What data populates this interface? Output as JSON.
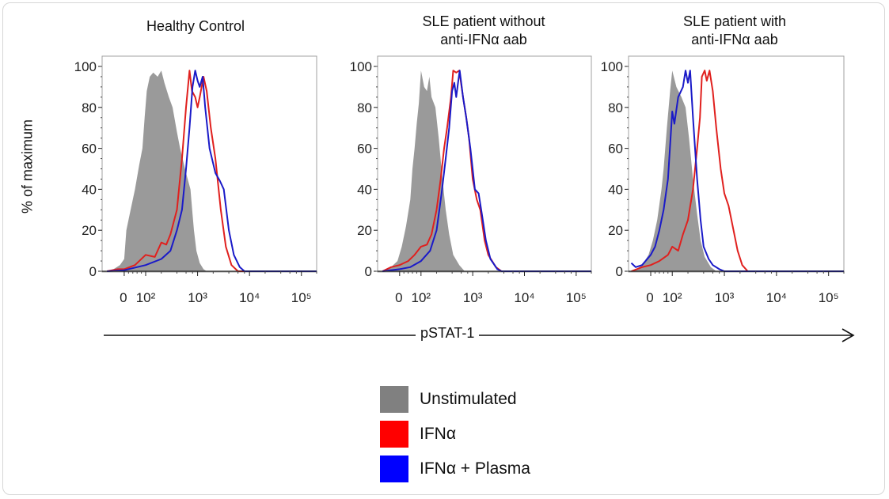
{
  "chart_data": [
    {
      "type": "area",
      "title": "Healthy Control",
      "ylim": [
        0,
        105
      ],
      "xscale": "biexponential",
      "xlim": [
        -100,
        250000
      ],
      "x_ticks": [
        "0",
        "10²",
        "10³",
        "10⁴",
        "10⁵"
      ],
      "x_tick_values": [
        0,
        100,
        1000,
        10000,
        100000
      ],
      "y_ticks": [
        0,
        20,
        40,
        60,
        80,
        100
      ],
      "series": [
        {
          "name": "Unstimulated",
          "style": "filled",
          "color": "#9a9a9a",
          "points": [
            [
              -80,
              0
            ],
            [
              -50,
              1
            ],
            [
              -20,
              3
            ],
            [
              0,
              6
            ],
            [
              10,
              20
            ],
            [
              30,
              30
            ],
            [
              50,
              40
            ],
            [
              70,
              52
            ],
            [
              85,
              60
            ],
            [
              95,
              75
            ],
            [
              105,
              88
            ],
            [
              120,
              95
            ],
            [
              140,
              97
            ],
            [
              170,
              95
            ],
            [
              200,
              98
            ],
            [
              230,
              92
            ],
            [
              280,
              85
            ],
            [
              330,
              80
            ],
            [
              400,
              68
            ],
            [
              460,
              60
            ],
            [
              600,
              48
            ],
            [
              730,
              40
            ],
            [
              800,
              28
            ],
            [
              850,
              20
            ],
            [
              950,
              10
            ],
            [
              1100,
              4
            ],
            [
              1300,
              1
            ],
            [
              1500,
              0
            ],
            [
              250000,
              0
            ]
          ]
        },
        {
          "name": "IFNα",
          "style": "line",
          "color": "#e0201e",
          "points": [
            [
              -80,
              0
            ],
            [
              -30,
              1
            ],
            [
              0,
              1
            ],
            [
              50,
              3
            ],
            [
              100,
              8
            ],
            [
              150,
              7
            ],
            [
              200,
              14
            ],
            [
              250,
              13
            ],
            [
              300,
              18
            ],
            [
              400,
              30
            ],
            [
              500,
              55
            ],
            [
              600,
              80
            ],
            [
              700,
              98
            ],
            [
              780,
              88
            ],
            [
              900,
              85
            ],
            [
              1000,
              80
            ],
            [
              1100,
              85
            ],
            [
              1300,
              95
            ],
            [
              1500,
              88
            ],
            [
              1800,
              70
            ],
            [
              2200,
              55
            ],
            [
              2800,
              30
            ],
            [
              3500,
              12
            ],
            [
              4500,
              3
            ],
            [
              6000,
              0
            ],
            [
              250000,
              0
            ]
          ]
        },
        {
          "name": "IFNα + Plasma",
          "style": "line",
          "color": "#1a1ac8",
          "points": [
            [
              -80,
              0
            ],
            [
              0,
              0.5
            ],
            [
              100,
              3
            ],
            [
              200,
              6
            ],
            [
              300,
              10
            ],
            [
              400,
              20
            ],
            [
              500,
              30
            ],
            [
              600,
              50
            ],
            [
              700,
              70
            ],
            [
              800,
              90
            ],
            [
              900,
              98
            ],
            [
              1000,
              93
            ],
            [
              1100,
              90
            ],
            [
              1250,
              95
            ],
            [
              1400,
              80
            ],
            [
              1700,
              60
            ],
            [
              2200,
              48
            ],
            [
              2700,
              44
            ],
            [
              3200,
              40
            ],
            [
              4000,
              20
            ],
            [
              5000,
              8
            ],
            [
              6500,
              2
            ],
            [
              8000,
              0
            ],
            [
              250000,
              0
            ]
          ]
        }
      ]
    },
    {
      "type": "area",
      "title": "SLE patient without\nanti-IFNα aab",
      "ylim": [
        0,
        105
      ],
      "xscale": "biexponential",
      "xlim": [
        -100,
        250000
      ],
      "x_ticks": [
        "0",
        "10²",
        "10³",
        "10⁴",
        "10⁵"
      ],
      "x_tick_values": [
        0,
        100,
        1000,
        10000,
        100000
      ],
      "y_ticks": [
        0,
        20,
        40,
        60,
        80,
        100
      ],
      "series": [
        {
          "name": "Unstimulated",
          "style": "filled",
          "color": "#9a9a9a",
          "points": [
            [
              -80,
              0
            ],
            [
              -40,
              2
            ],
            [
              -10,
              5
            ],
            [
              10,
              12
            ],
            [
              30,
              22
            ],
            [
              50,
              35
            ],
            [
              60,
              50
            ],
            [
              70,
              60
            ],
            [
              80,
              72
            ],
            [
              90,
              82
            ],
            [
              100,
              98
            ],
            [
              115,
              90
            ],
            [
              130,
              88
            ],
            [
              145,
              95
            ],
            [
              160,
              85
            ],
            [
              190,
              80
            ],
            [
              220,
              65
            ],
            [
              260,
              45
            ],
            [
              300,
              30
            ],
            [
              350,
              18
            ],
            [
              420,
              8
            ],
            [
              550,
              3
            ],
            [
              700,
              0
            ],
            [
              250000,
              0
            ]
          ]
        },
        {
          "name": "IFNα",
          "style": "line",
          "color": "#e0201e",
          "points": [
            [
              -80,
              0
            ],
            [
              -40,
              2
            ],
            [
              0,
              3
            ],
            [
              40,
              5
            ],
            [
              70,
              8
            ],
            [
              100,
              12
            ],
            [
              130,
              13
            ],
            [
              160,
              18
            ],
            [
              200,
              30
            ],
            [
              240,
              45
            ],
            [
              280,
              60
            ],
            [
              320,
              70
            ],
            [
              380,
              85
            ],
            [
              420,
              98
            ],
            [
              480,
              97
            ],
            [
              550,
              98
            ],
            [
              650,
              85
            ],
            [
              750,
              75
            ],
            [
              850,
              65
            ],
            [
              1000,
              45
            ],
            [
              1200,
              35
            ],
            [
              1400,
              30
            ],
            [
              1700,
              15
            ],
            [
              2000,
              8
            ],
            [
              2800,
              2
            ],
            [
              3600,
              0
            ],
            [
              250000,
              0
            ]
          ]
        },
        {
          "name": "IFNα + Plasma",
          "style": "line",
          "color": "#1a1ac8",
          "points": [
            [
              -80,
              0
            ],
            [
              0,
              1
            ],
            [
              50,
              2
            ],
            [
              100,
              5
            ],
            [
              150,
              10
            ],
            [
              200,
              20
            ],
            [
              250,
              38
            ],
            [
              300,
              55
            ],
            [
              350,
              70
            ],
            [
              400,
              88
            ],
            [
              440,
              92
            ],
            [
              480,
              85
            ],
            [
              520,
              92
            ],
            [
              560,
              98
            ],
            [
              650,
              85
            ],
            [
              750,
              75
            ],
            [
              900,
              60
            ],
            [
              1100,
              40
            ],
            [
              1300,
              38
            ],
            [
              1500,
              28
            ],
            [
              1800,
              15
            ],
            [
              2200,
              6
            ],
            [
              3000,
              1
            ],
            [
              3600,
              0
            ],
            [
              250000,
              0
            ]
          ]
        }
      ]
    },
    {
      "type": "area",
      "title": "SLE patient with\nanti-IFNα aab",
      "ylim": [
        0,
        105
      ],
      "xscale": "biexponential",
      "xlim": [
        -100,
        250000
      ],
      "x_ticks": [
        "0",
        "10²",
        "10³",
        "10⁴",
        "10⁵"
      ],
      "x_tick_values": [
        0,
        100,
        1000,
        10000,
        100000
      ],
      "y_ticks": [
        0,
        20,
        40,
        60,
        80,
        100
      ],
      "series": [
        {
          "name": "Unstimulated",
          "style": "filled",
          "color": "#9a9a9a",
          "points": [
            [
              -80,
              0
            ],
            [
              -40,
              3
            ],
            [
              -10,
              8
            ],
            [
              10,
              15
            ],
            [
              30,
              25
            ],
            [
              50,
              40
            ],
            [
              60,
              50
            ],
            [
              75,
              70
            ],
            [
              90,
              88
            ],
            [
              100,
              98
            ],
            [
              120,
              90
            ],
            [
              150,
              85
            ],
            [
              180,
              80
            ],
            [
              210,
              65
            ],
            [
              250,
              45
            ],
            [
              300,
              28
            ],
            [
              350,
              15
            ],
            [
              420,
              7
            ],
            [
              550,
              2
            ],
            [
              700,
              0
            ],
            [
              250000,
              0
            ]
          ]
        },
        {
          "name": "IFNα",
          "style": "line",
          "color": "#e0201e",
          "points": [
            [
              -90,
              0
            ],
            [
              -40,
              2
            ],
            [
              0,
              3
            ],
            [
              40,
              5
            ],
            [
              80,
              8
            ],
            [
              100,
              12
            ],
            [
              130,
              10
            ],
            [
              160,
              18
            ],
            [
              200,
              25
            ],
            [
              250,
              40
            ],
            [
              300,
              60
            ],
            [
              340,
              75
            ],
            [
              370,
              95
            ],
            [
              420,
              98
            ],
            [
              460,
              93
            ],
            [
              520,
              98
            ],
            [
              600,
              88
            ],
            [
              700,
              70
            ],
            [
              850,
              50
            ],
            [
              1000,
              38
            ],
            [
              1200,
              32
            ],
            [
              1500,
              20
            ],
            [
              1800,
              10
            ],
            [
              2200,
              3
            ],
            [
              2800,
              0
            ],
            [
              250000,
              0
            ]
          ]
        },
        {
          "name": "IFNα + Plasma",
          "style": "line",
          "color": "#1a1ac8",
          "points": [
            [
              -90,
              4
            ],
            [
              -70,
              2
            ],
            [
              -40,
              3
            ],
            [
              0,
              8
            ],
            [
              20,
              12
            ],
            [
              40,
              20
            ],
            [
              60,
              30
            ],
            [
              80,
              45
            ],
            [
              100,
              78
            ],
            [
              110,
              72
            ],
            [
              130,
              85
            ],
            [
              160,
              90
            ],
            [
              180,
              98
            ],
            [
              200,
              92
            ],
            [
              220,
              98
            ],
            [
              250,
              75
            ],
            [
              300,
              45
            ],
            [
              350,
              25
            ],
            [
              400,
              12
            ],
            [
              500,
              6
            ],
            [
              600,
              3
            ],
            [
              800,
              1
            ],
            [
              1000,
              0
            ],
            [
              250000,
              0
            ]
          ]
        }
      ]
    }
  ],
  "ylabel": "% of maximum",
  "xlabel": "pSTAT-1",
  "legend": [
    {
      "label": "Unstimulated",
      "color": "#808080"
    },
    {
      "label": "IFNα",
      "color": "#ff0000"
    },
    {
      "label": "IFNα + Plasma",
      "color": "#0000ff"
    }
  ]
}
